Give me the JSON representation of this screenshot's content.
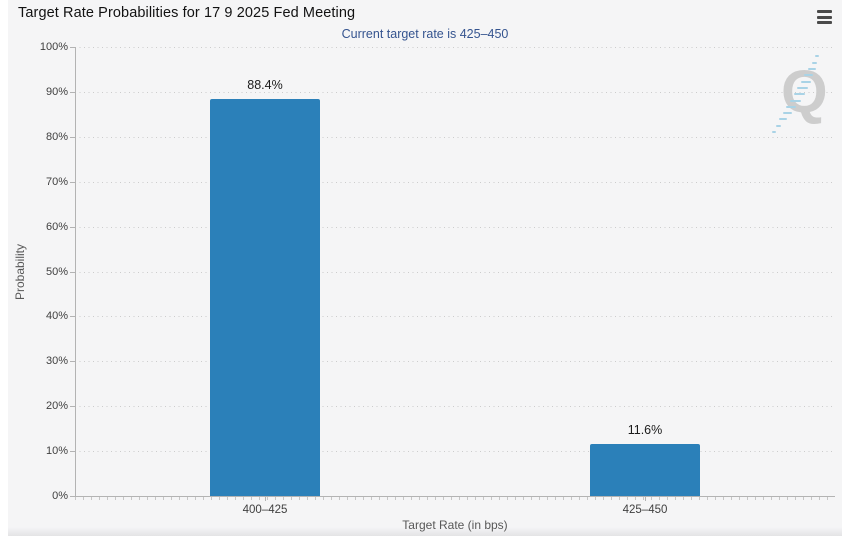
{
  "header": {
    "menu_icon": "hamburger-menu"
  },
  "chart_data": {
    "type": "bar",
    "title": "Target Rate Probabilities for 17 9 2025 Fed Meeting",
    "subtitle": "Current target rate is 425–450",
    "categories": [
      "400–425",
      "425–450"
    ],
    "values": [
      88.4,
      11.6
    ],
    "value_labels": [
      "88.4%",
      "11.6%"
    ],
    "xlabel": "Target Rate (in bps)",
    "ylabel": "Probability",
    "ylim": [
      0,
      100
    ],
    "ytick_step": 10,
    "ytick_labels": [
      "0%",
      "10%",
      "20%",
      "30%",
      "40%",
      "50%",
      "60%",
      "70%",
      "80%",
      "90%",
      "100%"
    ],
    "grid": "dotted-horizontal",
    "legend": "none",
    "colors": {
      "bar": "#2b80b9",
      "subtitle_text": "#35548f",
      "title_text": "#121212",
      "grid": "#cccccc",
      "axis": "#b3b3b3",
      "panel_bg": "#f5f5f6",
      "watermark_letter": "#c7c7c7",
      "watermark_dash": "#a9d3e6"
    }
  },
  "watermark": {
    "letter": "Q"
  }
}
